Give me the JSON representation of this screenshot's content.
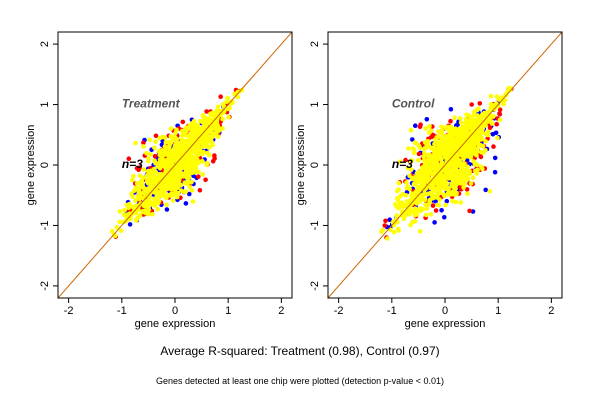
{
  "chart_data": [
    {
      "type": "scatter",
      "panel_label": "Treatment",
      "n_label": "n=3",
      "xlabel": "gene expression",
      "ylabel": "gene expression",
      "xlim": [
        -2.2,
        2.2
      ],
      "ylim": [
        -2.2,
        2.2
      ],
      "xticks": [
        -2,
        -1,
        0,
        1,
        2
      ],
      "yticks": [
        -2,
        -1,
        0,
        1,
        2
      ],
      "diagonal": true,
      "series_colors": [
        "#0000ff",
        "#ff0000",
        "#ffff00"
      ],
      "spread": 0.16
    },
    {
      "type": "scatter",
      "panel_label": "Control",
      "n_label": "n=3",
      "xlabel": "gene expression",
      "ylabel": "gene expression",
      "xlim": [
        -2.2,
        2.2
      ],
      "ylim": [
        -2.2,
        2.2
      ],
      "xticks": [
        -2,
        -1,
        0,
        1,
        2
      ],
      "yticks": [
        -2,
        -1,
        0,
        1,
        2
      ],
      "diagonal": true,
      "series_colors": [
        "#0000ff",
        "#ff0000",
        "#ffff00"
      ],
      "spread": 0.21
    }
  ],
  "captions": {
    "main": "Average R-squared: Treatment (0.98), Control (0.97)",
    "sub": "Genes detected at least one chip were plotted (detection p-value < 0.01)"
  },
  "colors": {
    "diagonal_line": "#cc6600"
  }
}
